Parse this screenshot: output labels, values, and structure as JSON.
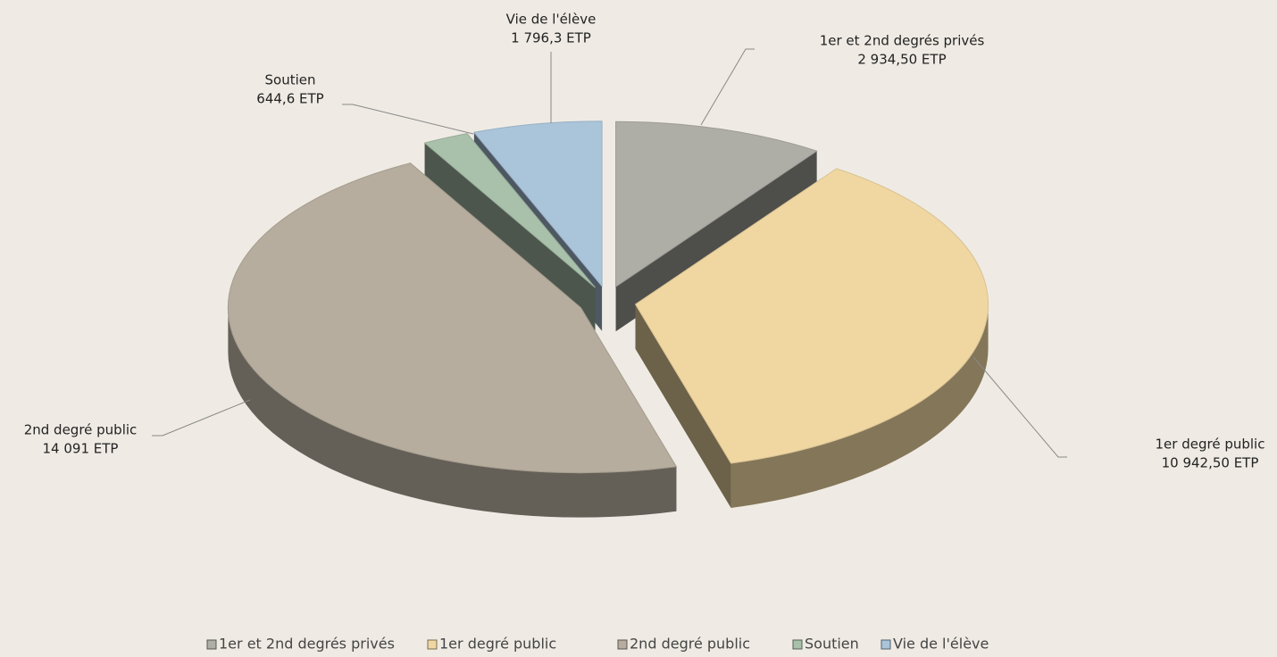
{
  "chart_data": {
    "type": "pie",
    "categories": [
      "1er et 2nd degrés privés",
      "1er degré public",
      "2nd degré public",
      "Soutien",
      "Vie de l'élève"
    ],
    "values": [
      2934.5,
      10942.5,
      14091,
      644.6,
      1796.3
    ],
    "value_labels": [
      "2 934,50 ETP",
      "10 942,50  ETP",
      "14 091 ETP",
      "644,6 ETP",
      "1 796,3 ETP"
    ],
    "colors": [
      "#aeada6",
      "#f0d7a2",
      "#b6ad9e",
      "#a9c0aa",
      "#aac4da"
    ],
    "legend": "bottom"
  }
}
